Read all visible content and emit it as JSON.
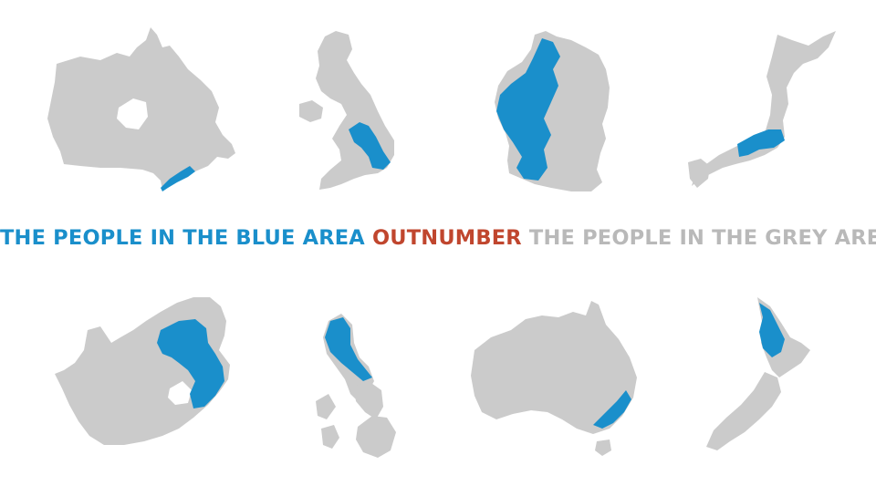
{
  "headline": {
    "part_blue": "THE PEOPLE IN THE BLUE AREA",
    "part_red": "OUTNUMBER",
    "part_grey": "THE PEOPLE IN THE GREY AREA"
  },
  "colors": {
    "blue_area": "#1a8fcb",
    "grey_area": "#cbcbcb",
    "accent_red": "#c0462e",
    "grey_text": "#b9b9b9",
    "background": "#ffffff"
  }
}
